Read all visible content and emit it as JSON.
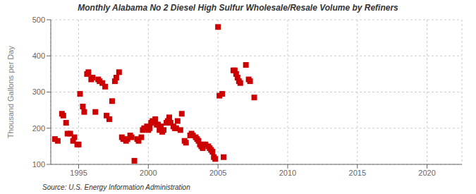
{
  "chart_data": {
    "type": "scatter",
    "title": "Monthly Alabama No 2 Diesel High Sulfur Wholesale/Resale Volume by Refiners",
    "y_label": "Thousand Gallons per Day",
    "annotations": [
      "Source: U.S. Energy Information Administration"
    ],
    "color": "#cc0000",
    "marker": "square",
    "grid": true,
    "xlim": [
      1993.0,
      2022.5
    ],
    "ylim": [
      100,
      500
    ],
    "xticks": [
      1995,
      2000,
      2005,
      2010,
      2015,
      2020
    ],
    "yticks": [
      100,
      200,
      300,
      400,
      500
    ],
    "x": [
      1993.3,
      1993.5,
      1993.8,
      1993.9,
      1994.1,
      1994.2,
      1994.4,
      1994.6,
      1994.7,
      1994.9,
      1995.0,
      1995.1,
      1995.3,
      1995.4,
      1995.6,
      1995.7,
      1995.9,
      1996.0,
      1996.2,
      1996.4,
      1996.5,
      1996.7,
      1996.9,
      1997.0,
      1997.2,
      1997.4,
      1997.6,
      1997.7,
      1997.9,
      1998.1,
      1998.2,
      1998.4,
      1998.5,
      1998.7,
      1998.8,
      1999.0,
      1999.2,
      1999.3,
      1999.5,
      1999.6,
      1999.7,
      1999.9,
      2000.0,
      2000.1,
      2000.2,
      2000.3,
      2000.5,
      2000.6,
      2000.7,
      2000.8,
      2000.9,
      2001.0,
      2001.1,
      2001.3,
      2001.4,
      2001.5,
      2001.6,
      2001.8,
      2001.9,
      2002.0,
      2002.1,
      2002.3,
      2002.4,
      2002.6,
      2002.7,
      2003.0,
      2003.1,
      2003.2,
      2003.4,
      2003.5,
      2003.6,
      2003.7,
      2003.8,
      2003.9,
      2004.0,
      2004.1,
      2004.3,
      2004.4,
      2004.5,
      2004.6,
      2004.7,
      2004.8,
      2005.0,
      2005.1,
      2005.3,
      2005.4,
      2006.1,
      2006.2,
      2006.3,
      2006.4,
      2006.5,
      2006.6,
      2007.0,
      2007.2,
      2007.3,
      2007.6
    ],
    "values": [
      170,
      165,
      240,
      235,
      215,
      185,
      185,
      165,
      175,
      155,
      155,
      295,
      260,
      245,
      350,
      355,
      335,
      340,
      245,
      335,
      330,
      325,
      315,
      235,
      225,
      275,
      330,
      340,
      355,
      175,
      170,
      165,
      170,
      180,
      175,
      110,
      170,
      165,
      175,
      195,
      200,
      205,
      195,
      200,
      215,
      220,
      225,
      210,
      210,
      195,
      205,
      190,
      195,
      215,
      220,
      230,
      215,
      205,
      200,
      200,
      220,
      195,
      240,
      165,
      160,
      180,
      185,
      180,
      175,
      170,
      165,
      155,
      150,
      145,
      155,
      155,
      150,
      145,
      140,
      135,
      120,
      115,
      480,
      290,
      295,
      120,
      360,
      360,
      350,
      340,
      330,
      325,
      375,
      335,
      330,
      285
    ]
  }
}
